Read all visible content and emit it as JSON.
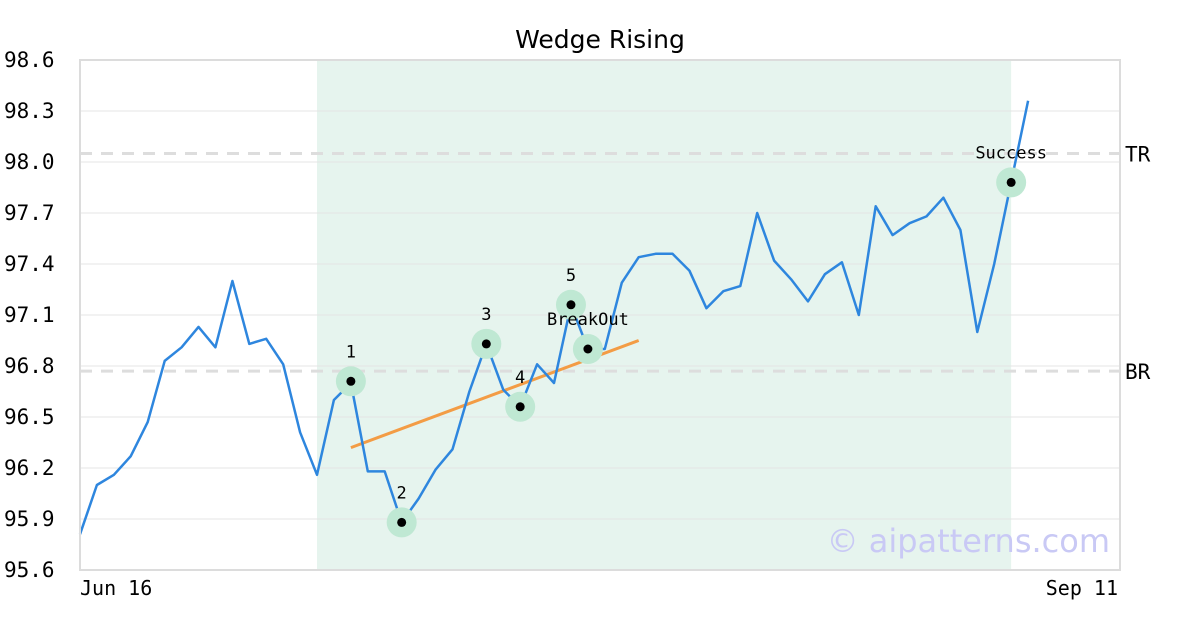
{
  "chart_data": {
    "type": "line",
    "title": "Wedge Rising",
    "xlabel": "",
    "ylabel": "",
    "x_tick_labels": [
      "Jun 16",
      "Sep 11"
    ],
    "y_ticks": [
      "95.6",
      "95.9",
      "96.2",
      "96.5",
      "96.8",
      "97.1",
      "97.4",
      "97.7",
      "98.0",
      "98.3",
      "98.6"
    ],
    "ylim": [
      95.6,
      98.6
    ],
    "grid": true,
    "series": [
      {
        "color": "#2e86de",
        "values": [
          95.81,
          96.1,
          96.16,
          96.27,
          96.47,
          96.83,
          96.91,
          97.03,
          96.91,
          97.3,
          96.93,
          96.96,
          96.81,
          96.41,
          96.16,
          96.6,
          96.7,
          96.18,
          96.18,
          95.88,
          96.02,
          96.19,
          96.31,
          96.65,
          96.93,
          96.66,
          96.56,
          96.81,
          96.7,
          97.16,
          96.9,
          96.9,
          97.29,
          97.44,
          97.46,
          97.46,
          97.36,
          97.14,
          97.24,
          97.27,
          97.7,
          97.42,
          97.31,
          97.18,
          97.34,
          97.41,
          97.1,
          97.74,
          97.57,
          97.64,
          97.68,
          97.79,
          97.6,
          97.0,
          97.4,
          97.88,
          98.36
        ]
      }
    ],
    "highlight_region": {
      "start_index": 14,
      "end_index": 55,
      "color": "#e6f4ee"
    },
    "reference_lines": [
      {
        "label": "TR",
        "y": 98.05
      },
      {
        "label": "BR",
        "y": 96.77
      }
    ],
    "trendline": {
      "color": "#f39c45",
      "from": {
        "index": 16,
        "y": 96.32
      },
      "to": {
        "index": 33,
        "y": 96.95
      }
    },
    "marked_points": [
      {
        "label": "1",
        "index": 16,
        "y": 96.71
      },
      {
        "label": "2",
        "index": 19,
        "y": 95.88
      },
      {
        "label": "3",
        "index": 24,
        "y": 96.93
      },
      {
        "label": "4",
        "index": 26,
        "y": 96.56
      },
      {
        "label": "5",
        "index": 29,
        "y": 97.16
      },
      {
        "label": "BreakOut",
        "index": 30,
        "y": 96.9
      },
      {
        "label": "Success",
        "index": 55,
        "y": 97.88
      }
    ]
  },
  "watermark": "© aipatterns.com",
  "colors": {
    "line": "#2e86de",
    "highlight": "#e6f4ee",
    "trend": "#f39c45",
    "marker_halo": "#bfe8d3",
    "marker_dot": "#000000",
    "ref_line": "#dddddd",
    "grid": "#e4e4e4",
    "frame": "#dcdcdc"
  }
}
